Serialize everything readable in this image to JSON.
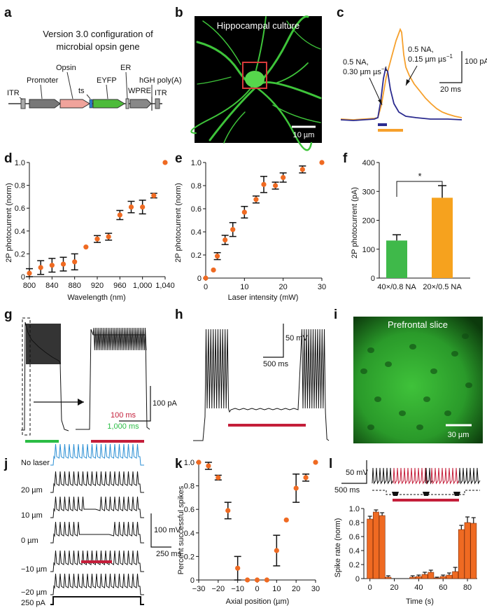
{
  "panels": {
    "a": "a",
    "b": "b",
    "c": "c",
    "d": "d",
    "e": "e",
    "f": "f",
    "g": "g",
    "h": "h",
    "i": "i",
    "j": "j",
    "k": "k",
    "l": "l"
  },
  "panel_a": {
    "title_line1": "Version 3.0 configuration of",
    "title_line2": "microbial opsin gene",
    "labels": {
      "itr_left": "ITR",
      "promoter": "Promoter",
      "opsin": "Opsin",
      "ts": "ts",
      "eyfp": "EYFP",
      "er": "ER",
      "wpre": "WPRE",
      "hgh": "hGH poly(A)",
      "itr_right": "ITR"
    }
  },
  "panel_b": {
    "title": "Hippocampal culture",
    "scalebar": "10 µm"
  },
  "panel_c": {
    "label_blue_1": "0.5 NA,",
    "label_blue_2": "0.30 µm µs",
    "label_orange_1": "0.5 NA,",
    "label_orange_2": "0.15 µm µs",
    "scale_y": "100 pA",
    "scale_x": "20 ms",
    "colors": {
      "blue": "#2b2b8f",
      "orange": "#f6a02c"
    }
  },
  "panel_i": {
    "title": "Prefrontal slice",
    "scalebar": "30 µm"
  },
  "panel_g": {
    "scale_y": "100 pA",
    "legend_red": "100 ms",
    "legend_green": "1,000 ms"
  },
  "panel_h": {
    "scale_y": "50 mV",
    "scale_x": "500 ms"
  },
  "panel_j": {
    "rows": [
      "No laser",
      "20 µm",
      "10 µm",
      "0 µm",
      "−10 µm",
      "−20 µm",
      "250 pA"
    ],
    "scale_y": "100 mV",
    "scale_x": "250 ms"
  },
  "panel_l": {
    "scale_y": "50 mV",
    "scale_x": "500 ms"
  },
  "chart_data": [
    {
      "id": "d",
      "type": "scatter",
      "xlabel": "Wavelength (nm)",
      "ylabel": "2P photocurrent (norm)",
      "xlim": [
        800,
        1040
      ],
      "ylim": [
        0,
        1.0
      ],
      "xticks": [
        800,
        840,
        880,
        920,
        960,
        1000,
        1040
      ],
      "xtick_labels": [
        "800",
        "840",
        "880",
        "920",
        "960",
        "1,000",
        "1,040"
      ],
      "yticks": [
        0,
        0.2,
        0.4,
        0.6,
        0.8,
        1.0
      ],
      "ytick_labels": [
        "0",
        "0.2",
        "0.4",
        "0.6",
        "0.8",
        "1.0"
      ],
      "x": [
        800,
        820,
        840,
        860,
        880,
        900,
        920,
        940,
        960,
        980,
        1000,
        1020,
        1040
      ],
      "y": [
        0.03,
        0.08,
        0.1,
        0.11,
        0.13,
        0.26,
        0.33,
        0.35,
        0.54,
        0.61,
        0.61,
        0.71,
        1.0
      ],
      "err": [
        0.04,
        0.06,
        0.06,
        0.06,
        0.07,
        0,
        0.03,
        0.03,
        0.04,
        0.05,
        0.06,
        0.02,
        0
      ]
    },
    {
      "id": "e",
      "type": "scatter",
      "xlabel": "Laser intensity (mW)",
      "ylabel": "2P photocurrent (norm)",
      "xlim": [
        0,
        30
      ],
      "ylim": [
        0,
        1.0
      ],
      "xticks": [
        0,
        10,
        20,
        30
      ],
      "xtick_labels": [
        "0",
        "10",
        "20",
        "30"
      ],
      "yticks": [
        0,
        0.2,
        0.4,
        0.6,
        0.8,
        1.0
      ],
      "ytick_labels": [
        "0",
        "0.2",
        "0.4",
        "0.6",
        "0.8",
        "1.0"
      ],
      "x": [
        0,
        2,
        3,
        5,
        7,
        10,
        13,
        15,
        18,
        20,
        25,
        30
      ],
      "y": [
        0,
        0.07,
        0.19,
        0.33,
        0.42,
        0.57,
        0.68,
        0.81,
        0.8,
        0.87,
        0.94,
        1.0
      ],
      "err": [
        0,
        0,
        0.03,
        0.04,
        0.06,
        0.05,
        0.03,
        0.07,
        0.03,
        0.04,
        0.03,
        0
      ]
    },
    {
      "id": "f",
      "type": "bar",
      "ylabel": "2P photocurrent (pA)",
      "ylim": [
        0,
        400
      ],
      "yticks": [
        0,
        100,
        200,
        300,
        400
      ],
      "categories": [
        "40×/0.8 NA",
        "20×/0.5 NA"
      ],
      "values": [
        130,
        278
      ],
      "err": [
        20,
        42
      ],
      "colors": [
        "#3fb94a",
        "#f6a21e"
      ],
      "significance": "*"
    },
    {
      "id": "k",
      "type": "scatter",
      "xlabel": "Axial position (µm)",
      "ylabel": "Percent successful spikes",
      "xlim": [
        -30,
        30
      ],
      "ylim": [
        0,
        1.0
      ],
      "xticks": [
        -30,
        -20,
        -10,
        0,
        10,
        20,
        30
      ],
      "xtick_labels": [
        "−30",
        "−20",
        "−10",
        "0",
        "10",
        "20",
        "30"
      ],
      "yticks": [
        0,
        0.2,
        0.4,
        0.6,
        0.8,
        1.0
      ],
      "ytick_labels": [
        "0",
        "0.2",
        "0.4",
        "0.6",
        "0.8",
        "1.0"
      ],
      "x": [
        -30,
        -25,
        -20,
        -15,
        -10,
        -5,
        0,
        5,
        10,
        15,
        20,
        25,
        30
      ],
      "y": [
        1.0,
        0.97,
        0.87,
        0.59,
        0.1,
        0,
        0,
        0,
        0.25,
        0.51,
        0.78,
        0.87,
        1.0
      ],
      "err": [
        0,
        0.03,
        0.02,
        0.07,
        0.1,
        0,
        0,
        0,
        0.13,
        0,
        0.12,
        0.03,
        0
      ]
    },
    {
      "id": "l",
      "type": "bar",
      "xlabel": "Time (s)",
      "ylabel": "Spike rate (norm)",
      "xlim": [
        -5,
        88
      ],
      "ylim": [
        0,
        1.0
      ],
      "xticks": [
        0,
        20,
        40,
        60,
        80
      ],
      "yticks": [
        0,
        0.2,
        0.4,
        0.6,
        0.8,
        1.0
      ],
      "ytick_labels": [
        "0",
        "0.2",
        "0.4",
        "0.6",
        "0.8",
        "1.0"
      ],
      "x": [
        0,
        5,
        10,
        15,
        20,
        25,
        30,
        35,
        40,
        45,
        50,
        55,
        60,
        65,
        70,
        75,
        80,
        85
      ],
      "values": [
        0.85,
        0.95,
        0.9,
        0.02,
        0,
        0,
        0,
        0.02,
        0.03,
        0.06,
        0.09,
        0.01,
        0.03,
        0.05,
        0.1,
        0.7,
        0.8,
        0.79
      ],
      "err": [
        0.04,
        0.03,
        0.04,
        0.02,
        0,
        0,
        0,
        0.02,
        0.02,
        0.03,
        0.03,
        0.01,
        0.02,
        0.03,
        0.06,
        0.06,
        0.08,
        0.08
      ],
      "color": "#ef6a22"
    }
  ]
}
